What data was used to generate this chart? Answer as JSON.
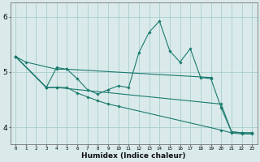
{
  "xlabel": "Humidex (Indice chaleur)",
  "bg_color": "#daeaea",
  "grid_color": "#a8cece",
  "line_color": "#1a7a6e",
  "xlim": [
    -0.5,
    23.5
  ],
  "ylim": [
    3.7,
    6.25
  ],
  "yticks": [
    4,
    5,
    6
  ],
  "xticks": [
    0,
    1,
    2,
    3,
    4,
    5,
    6,
    7,
    8,
    9,
    10,
    11,
    12,
    13,
    14,
    15,
    16,
    17,
    18,
    19,
    20,
    21,
    22,
    23
  ],
  "lines": [
    {
      "x": [
        0,
        1,
        4,
        5,
        19
      ],
      "y": [
        5.28,
        5.18,
        5.05,
        5.05,
        4.9
      ]
    },
    {
      "x": [
        0,
        3,
        4,
        5,
        6,
        7,
        8,
        9,
        10,
        11,
        12,
        13,
        14,
        15,
        16,
        17,
        18,
        19,
        20,
        21,
        22,
        23
      ],
      "y": [
        5.28,
        4.72,
        5.08,
        5.05,
        4.88,
        4.68,
        4.6,
        4.68,
        4.75,
        4.72,
        5.35,
        5.72,
        5.92,
        5.38,
        5.18,
        5.42,
        4.9,
        4.88,
        4.35,
        3.92,
        3.9,
        3.9
      ]
    },
    {
      "x": [
        0,
        3,
        4,
        20,
        21,
        22,
        23
      ],
      "y": [
        5.28,
        4.72,
        4.72,
        4.42,
        3.92,
        3.9,
        3.9
      ]
    },
    {
      "x": [
        0,
        3,
        4,
        5,
        6,
        7,
        8,
        9,
        10,
        20,
        21,
        22,
        23
      ],
      "y": [
        5.28,
        4.72,
        4.72,
        4.72,
        4.62,
        4.55,
        4.48,
        4.42,
        4.38,
        3.95,
        3.9,
        3.88,
        3.88
      ]
    }
  ]
}
